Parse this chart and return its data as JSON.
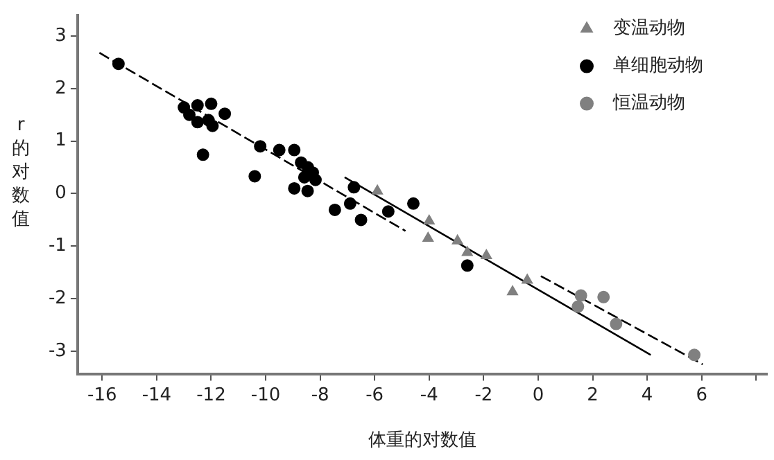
{
  "chart_data": {
    "type": "scatter",
    "xlabel": "体重的对数值",
    "ylabel": "r的对数值",
    "xlim": [
      -16.9,
      8.4
    ],
    "xticks": [
      -16,
      -14,
      -12,
      -10,
      -8,
      -6,
      -4,
      -2,
      0,
      2,
      4,
      6,
      {
        "value": 8,
        "label": null
      }
    ],
    "ylim": [
      -3.43,
      3.4
    ],
    "yticks": [
      -3,
      -2,
      -1,
      0,
      1,
      2,
      3
    ],
    "grid": false,
    "legend": "top right",
    "series": [
      {
        "name": "变温动物",
        "type": "scatter",
        "marker": "triangle",
        "color": "#808080",
        "x": [
          -5.9,
          -4.0,
          -4.04,
          -2.96,
          -2.6,
          -1.9,
          -0.4,
          -0.94
        ],
        "values": [
          0.05,
          -0.52,
          -0.85,
          -0.9,
          -1.12,
          -1.18,
          -1.65,
          -1.87
        ]
      },
      {
        "name": "单细胞动物",
        "type": "scatter",
        "marker": "circle",
        "color": "#000000",
        "x": [
          -15.4,
          -13.0,
          -12.5,
          -12.0,
          -11.5,
          -12.8,
          -12.5,
          -12.1,
          -11.95,
          -12.3,
          -10.2,
          -10.4,
          -9.5,
          -8.95,
          -8.95,
          -8.7,
          -8.45,
          -8.27,
          -8.58,
          -8.17,
          -8.46,
          -6.76,
          -7.46,
          -6.9,
          -6.5,
          -5.5,
          -4.58,
          -2.6
        ],
        "values": [
          2.47,
          1.64,
          1.68,
          1.71,
          1.52,
          1.5,
          1.36,
          1.4,
          1.29,
          0.74,
          0.9,
          0.33,
          0.83,
          0.83,
          0.1,
          0.59,
          0.5,
          0.4,
          0.31,
          0.26,
          0.05,
          0.12,
          -0.31,
          -0.19,
          -0.5,
          -0.34,
          -0.19,
          -1.37
        ]
      },
      {
        "name": "恒温动物",
        "type": "scatter",
        "marker": "circle",
        "color": "#808080",
        "x": [
          1.57,
          2.4,
          1.46,
          2.86,
          5.73
        ],
        "values": [
          -1.94,
          -1.97,
          -2.15,
          -2.48,
          -3.07
        ]
      },
      {
        "type": "line",
        "color": "#000000",
        "line_style": "dashed",
        "marker": "none",
        "x": [
          -16.1,
          -4.87
        ],
        "values": [
          2.68,
          -0.71
        ]
      },
      {
        "type": "line",
        "color": "#000000",
        "line_style": "solid",
        "marker": "none",
        "x": [
          -7.1,
          4.13
        ],
        "values": [
          0.31,
          -3.07
        ]
      },
      {
        "type": "line",
        "color": "#000000",
        "line_style": "dashed",
        "marker": "none",
        "x": [
          0.1,
          6.04
        ],
        "values": [
          -1.57,
          -3.25
        ]
      }
    ]
  }
}
